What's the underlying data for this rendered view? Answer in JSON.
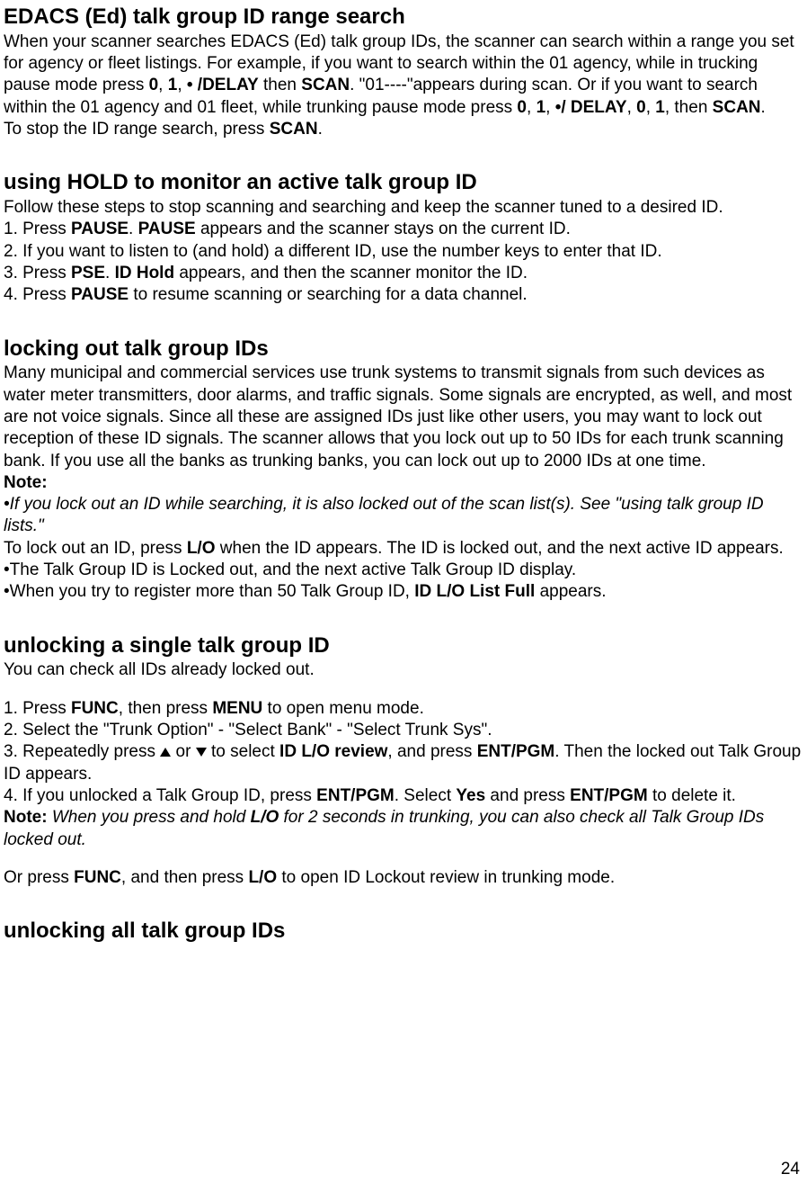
{
  "page_number": "24",
  "section1": {
    "title": "EDACS (Ed) talk group ID range search",
    "p1a": "When your scanner searches EDACS (Ed) talk group IDs, the scanner can search within a range you set for agency or fleet listings. For example, if you want to search within the 01 agency, while in trucking pause mode press ",
    "k1": "0",
    "k2": "1",
    "k3": "• /DELAY",
    "k4": "SCAN",
    "p1b": ". \"01----\"appears during scan. Or if you want to search within the 01 agency and 01 fleet, while trunking pause mode press ",
    "k5": "0",
    "k6": "1",
    "k7": "•/ DELAY",
    "k8": "0",
    "k9": "1",
    "k10": "SCAN",
    "p2a": "To stop the ID range search, press ",
    "k11": "SCAN"
  },
  "section2": {
    "title": "using HOLD to monitor an active talk group ID",
    "p1": "Follow these steps to stop scanning and searching and keep the scanner tuned to a desired ID.",
    "l1a": "1. Press ",
    "l1k1": "PAUSE",
    "l1b": ". ",
    "l1k2": "PAUSE",
    "l1c": " appears and the scanner stays on the current ID.",
    "l2": "2. If you want to listen to (and hold) a different ID, use the number keys to enter that ID.",
    "l3a": "3. Press ",
    "l3k1": "PSE",
    "l3b": ". ",
    "l3k2": "ID Hold",
    "l3c": " appears, and then the scanner monitor the ID.",
    "l4a": "4. Press ",
    "l4k1": "PAUSE",
    "l4b": " to resume scanning or searching for a data channel."
  },
  "section3": {
    "title": "locking out talk group IDs",
    "p1": "Many municipal and commercial services use trunk systems to transmit signals from such devices as water meter transmitters, door alarms, and traffic signals. Some signals are encrypted, as well, and most are not voice signals. Since all these are assigned IDs just like other users, you may want to lock out reception of these ID signals. The scanner allows that you lock out up to 50 IDs for each trunk scanning bank. If you use all the banks as trunking banks, you can lock out up to 2000 IDs at one time.",
    "note_label": "Note:",
    "note1": "•If you lock out an ID while searching, it is also locked out of the scan list(s). See \"using talk group ID lists.\"",
    "p2a": "To lock out an ID, press ",
    "p2k1": "L/O",
    "p2b": " when the ID appears. The ID is locked out, and the next active ID appears.",
    "p3": "•The Talk Group ID is Locked out, and the next active Talk Group ID display.",
    "p4a": "•When you try to register more than 50 Talk Group ID, ",
    "p4k1": "ID L/O List Full",
    "p4b": " appears."
  },
  "section4": {
    "title": "unlocking a single talk group ID",
    "p1": "You can check all IDs already locked out.",
    "l1a": "1. Press ",
    "l1k1": "FUNC",
    "l1b": ", then press ",
    "l1k2": "MENU",
    "l1c": " to open menu mode.",
    "l2": "2. Select the \"Trunk Option\" - \"Select Bank\" - \"Select Trunk Sys\".",
    "l3a": "3. Repeatedly press  ",
    "l3b": " or  ",
    "l3c": " to select ",
    "l3k1": "ID L/O review",
    "l3d": ", and press ",
    "l3k2": "ENT/PGM",
    "l3e": ". Then the locked out Talk Group ID appears.",
    "l4a": "4. If you unlocked a Talk Group ID, press ",
    "l4k1": "ENT/PGM",
    "l4b": ". Select ",
    "l4k2": "Yes",
    "l4c": " and press ",
    "l4k3": "ENT/PGM",
    "l4d": " to delete it.",
    "note_label": "Note: ",
    "note1a": "When you press and hold ",
    "note1k1": "L/O",
    "note1b": " for 2 seconds in trunking, you can also check all Talk Group IDs locked out.",
    "p2a": "Or press ",
    "p2k1": "FUNC",
    "p2b": ", and then press ",
    "p2k2": "L/O",
    "p2c": " to open ID Lockout review in trunking mode."
  },
  "section5": {
    "title": "unlocking all talk group IDs"
  }
}
